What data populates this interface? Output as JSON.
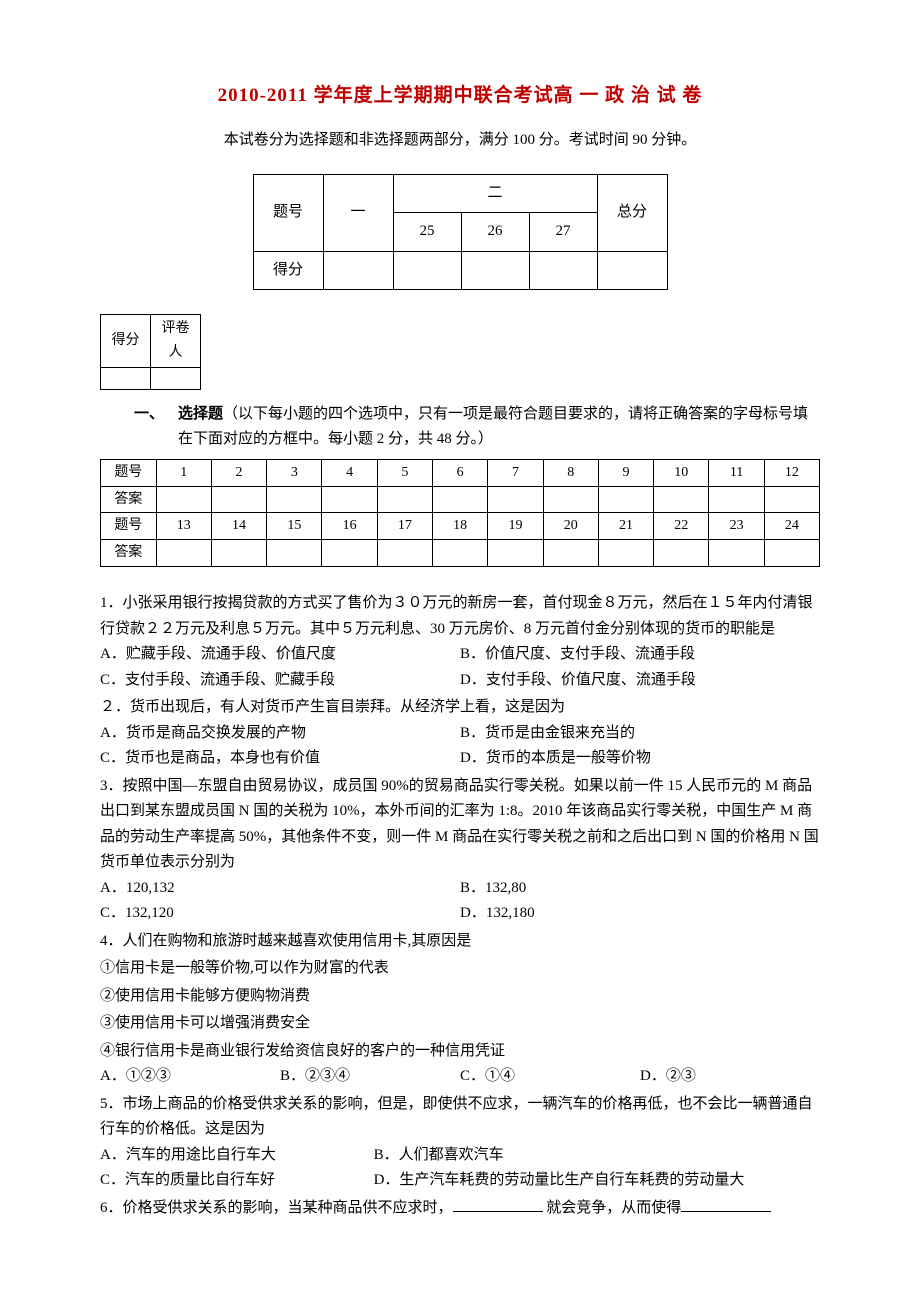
{
  "title": "2010-2011 学年度上学期期中联合考试高 一 政 治 试 卷",
  "subtitle": "本试卷分为选择题和非选择题两部分，满分 100 分。考试时间 90 分钟。",
  "score_table": {
    "row_label": "题号",
    "col_one": "一",
    "col_two": "二",
    "subcols": [
      "25",
      "26",
      "27"
    ],
    "col_total": "总分",
    "score_label": "得分"
  },
  "grader": {
    "score": "得分",
    "grader": "评卷人"
  },
  "section1": {
    "label": "一、",
    "name": "选择题",
    "desc": "（以下每小题的四个选项中，只有一项是最符合题目要求的，请将正确答案的字母标号填在下面对应的方框中。每小题 2 分，共 48 分。）"
  },
  "answer_grid": {
    "hdr_q": "题号",
    "hdr_a": "答案",
    "nums1": [
      "1",
      "2",
      "3",
      "4",
      "5",
      "6",
      "7",
      "8",
      "9",
      "10",
      "11",
      "12"
    ],
    "nums2": [
      "13",
      "14",
      "15",
      "16",
      "17",
      "18",
      "19",
      "20",
      "21",
      "22",
      "23",
      "24"
    ]
  },
  "q1": {
    "text": "1．小张采用银行按揭贷款的方式买了售价为３０万元的新房一套，首付现金８万元，然后在１５年内付清银行贷款２２万元及利息５万元。其中５万元利息、30 万元房价、8 万元首付金分别体现的货币的职能是",
    "A": "A．贮藏手段、流通手段、价值尺度",
    "B": "B．价值尺度、支付手段、流通手段",
    "C": "C．支付手段、流通手段、贮藏手段",
    "D": "D．支付手段、价值尺度、流通手段"
  },
  "q2": {
    "text": "２．货币出现后，有人对货币产生盲目崇拜。从经济学上看，这是因为",
    "A": "A．货币是商品交换发展的产物",
    "B": "B．货币是由金银来充当的",
    "C": "C．货币也是商品，本身也有价值",
    "D": "D．货币的本质是一般等价物"
  },
  "q3": {
    "text": "3．按照中国—东盟自由贸易协议，成员国 90%的贸易商品实行零关税。如果以前一件 15 人民币元的 M 商品出口到某东盟成员国 N 国的关税为 10%，本外币间的汇率为 1:8。2010 年该商品实行零关税，中国生产 M 商品的劳动生产率提高 50%，其他条件不变，则一件 M 商品在实行零关税之前和之后出口到 N 国的价格用 N 国货币单位表示分别为",
    "A": "A．120,132",
    "B": "B．132,80",
    "C": "C．132,120",
    "D": "D．132,180"
  },
  "q4": {
    "text": "4．人们在购物和旅游时越来越喜欢使用信用卡,其原因是",
    "s1": "①信用卡是一般等价物,可以作为财富的代表",
    "s2": "②使用信用卡能够方便购物消费",
    "s3": "③使用信用卡可以增强消费安全",
    "s4": "④银行信用卡是商业银行发给资信良好的客户的一种信用凭证",
    "A": "A．①②③",
    "B": "B．②③④",
    "C": "C．①④",
    "D": "D．②③"
  },
  "q5": {
    "text": "5．市场上商品的价格受供求关系的影响，但是，即使供不应求，一辆汽车的价格再低，也不会比一辆普通自行车的价格低。这是因为",
    "A": "A．汽车的用途比自行车大",
    "B": "B．人们都喜欢汽车",
    "C": "C．汽车的质量比自行车好",
    "D": "D．生产汽车耗费的劳动量比生产自行车耗费的劳动量大"
  },
  "q6": {
    "pre": "6．价格受供求关系的影响，当某种商品供不应求时，",
    "mid": " 就会竞争，从而使得"
  }
}
